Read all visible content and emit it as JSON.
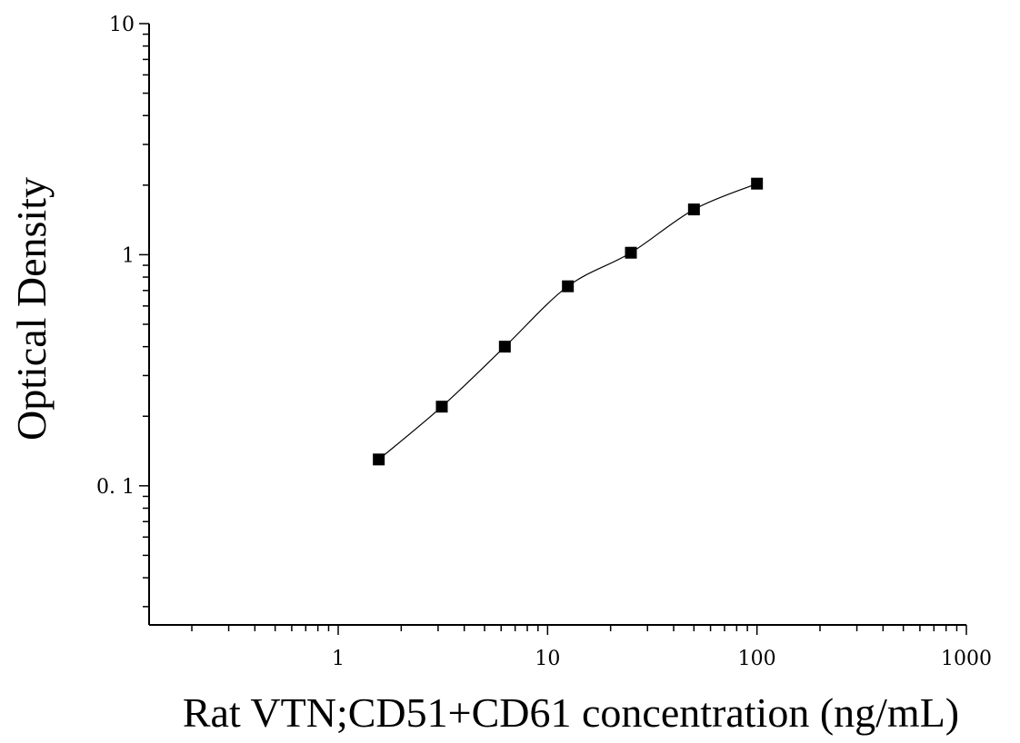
{
  "chart_data": {
    "type": "scatter",
    "xlabel": "Rat VTN;CD51+CD61 concentration (ng/mL)",
    "ylabel": "Optical Density",
    "x_scale": "log",
    "y_scale": "log",
    "xlim": [
      0.125,
      1000
    ],
    "ylim": [
      0.025,
      10
    ],
    "x_ticks": [
      1,
      10,
      100,
      1000
    ],
    "x_tick_labels": [
      "1",
      "10",
      "100",
      "1000"
    ],
    "y_ticks": [
      0.1,
      1,
      10
    ],
    "y_tick_labels": [
      "0. 1",
      "1",
      "10"
    ],
    "grid": false,
    "legend": "none",
    "marker": "square",
    "series": [
      {
        "x": [
          1.5625,
          3.125,
          6.25,
          12.5,
          25,
          50,
          100
        ],
        "y": [
          0.13,
          0.22,
          0.4,
          0.73,
          1.02,
          1.57,
          2.03
        ],
        "fit_curve": true,
        "color": "#000000"
      }
    ]
  }
}
